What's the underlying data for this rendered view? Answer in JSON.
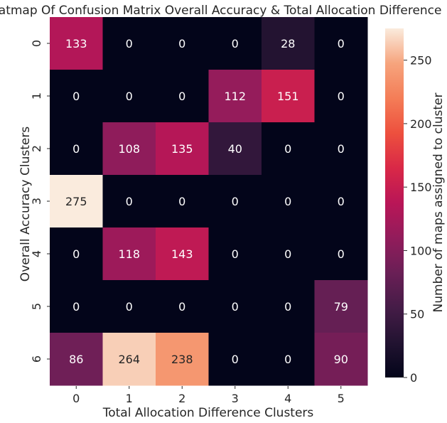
{
  "chart_data": {
    "type": "heatmap",
    "title": "Heatmap Of Confusion Matrix Overall Accuracy & Total Allocation Difference",
    "xlabel": "Total Allocation Difference Clusters",
    "ylabel": "Overall Accuracy Clusters",
    "x_categories": [
      "0",
      "1",
      "2",
      "3",
      "4",
      "5"
    ],
    "y_categories": [
      "0",
      "1",
      "2",
      "3",
      "4",
      "5",
      "6"
    ],
    "values": [
      [
        133,
        0,
        0,
        0,
        28,
        0
      ],
      [
        0,
        0,
        0,
        112,
        151,
        0
      ],
      [
        0,
        108,
        135,
        40,
        0,
        0
      ],
      [
        275,
        0,
        0,
        0,
        0,
        0
      ],
      [
        0,
        118,
        143,
        0,
        0,
        0
      ],
      [
        0,
        0,
        0,
        0,
        0,
        79
      ],
      [
        86,
        264,
        238,
        0,
        0,
        90
      ]
    ],
    "annotations": true,
    "colormap": "rocket",
    "colorbar": {
      "label": "Number of maps assigned to cluster",
      "range": [
        0,
        275
      ],
      "ticks": [
        0,
        50,
        100,
        150,
        200,
        250
      ]
    },
    "grid": false,
    "legend": "colorbar-right"
  }
}
